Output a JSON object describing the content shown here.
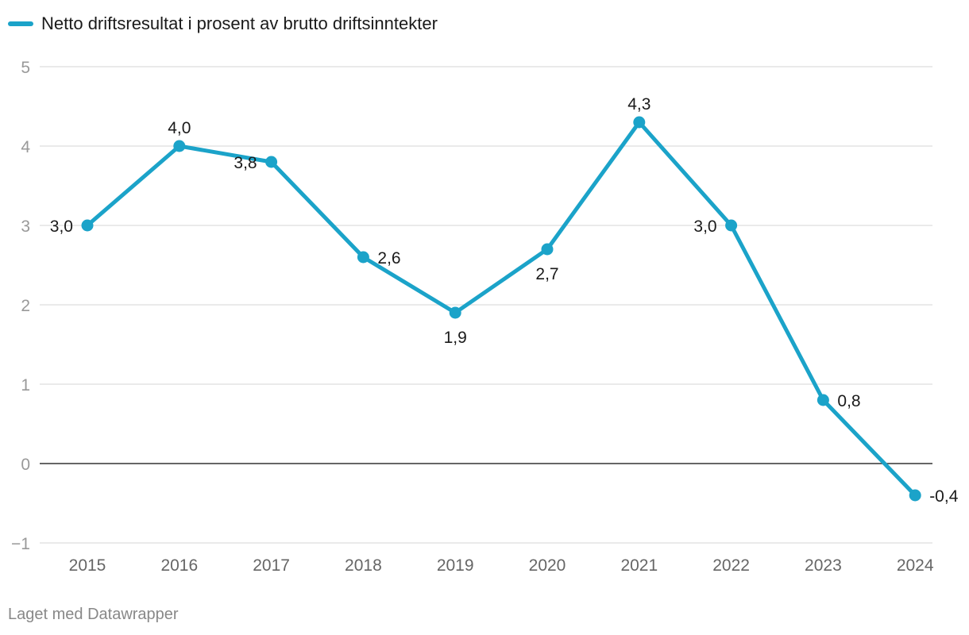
{
  "legend": {
    "label": "Netto driftsresultat i prosent av brutto driftsinntekter"
  },
  "footer": {
    "credit": "Laget med Datawrapper"
  },
  "colors": {
    "series": "#1ba3c9",
    "grid": "#dddddd",
    "zero_line": "#333333"
  },
  "chart_data": {
    "type": "line",
    "title": "",
    "xlabel": "",
    "ylabel": "",
    "x": [
      "2015",
      "2016",
      "2017",
      "2018",
      "2019",
      "2020",
      "2021",
      "2022",
      "2023",
      "2024"
    ],
    "series": [
      {
        "name": "Netto driftsresultat i prosent av brutto driftsinntekter",
        "values": [
          3.0,
          4.0,
          3.8,
          2.6,
          1.9,
          2.7,
          4.3,
          3.0,
          0.8,
          -0.4
        ],
        "labels": [
          "3,0",
          "4,0",
          "3,8",
          "2,6",
          "1,9",
          "2,7",
          "4,3",
          "3,0",
          "0,8",
          "-0,4"
        ]
      }
    ],
    "ylim": [
      -1,
      5
    ],
    "yticks": [
      5,
      4,
      3,
      2,
      1,
      0,
      -1
    ],
    "ytick_labels": [
      "5",
      "4",
      "3",
      "2",
      "1",
      "0",
      "−1"
    ],
    "grid": true,
    "legend_position": "top-left"
  }
}
